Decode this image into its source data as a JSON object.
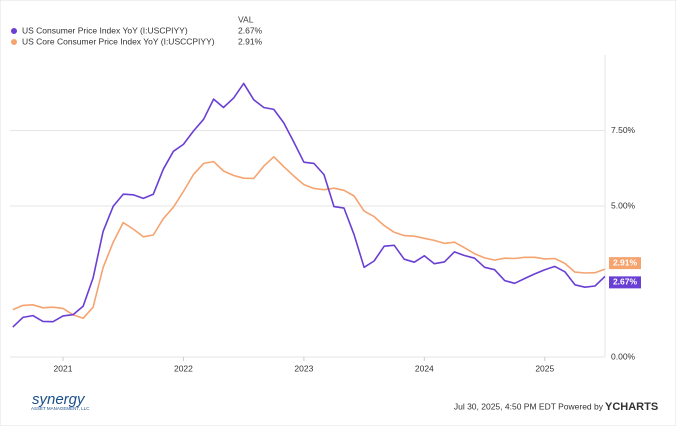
{
  "chart_data": {
    "type": "line",
    "legend_header": "VAL",
    "x": [
      2020.583,
      2020.667,
      2020.75,
      2020.833,
      2020.917,
      2021,
      2021.083,
      2021.167,
      2021.25,
      2021.333,
      2021.417,
      2021.5,
      2021.583,
      2021.667,
      2021.75,
      2021.833,
      2021.917,
      2022,
      2022.083,
      2022.167,
      2022.25,
      2022.333,
      2022.417,
      2022.5,
      2022.583,
      2022.667,
      2022.75,
      2022.833,
      2022.917,
      2023,
      2023.083,
      2023.167,
      2023.25,
      2023.333,
      2023.417,
      2023.5,
      2023.583,
      2023.667,
      2023.75,
      2023.833,
      2023.917,
      2024,
      2024.083,
      2024.167,
      2024.25,
      2024.333,
      2024.417,
      2024.5,
      2024.583,
      2024.667,
      2024.75,
      2024.833,
      2024.917,
      2025,
      2025.083,
      2025.167,
      2025.25,
      2025.333,
      2025.417,
      2025.5
    ],
    "series": [
      {
        "name": "US Consumer Price Index YoY (I:USCPIYY)",
        "color": "#6a3fd4",
        "latest_label": "2.67%",
        "values": [
          0.99,
          1.31,
          1.37,
          1.18,
          1.17,
          1.36,
          1.4,
          1.68,
          2.62,
          4.16,
          4.99,
          5.39,
          5.37,
          5.25,
          5.39,
          6.22,
          6.81,
          7.04,
          7.48,
          7.87,
          8.54,
          8.26,
          8.58,
          9.06,
          8.52,
          8.26,
          8.2,
          7.75,
          7.11,
          6.45,
          6.41,
          6.04,
          4.98,
          4.93,
          4.05,
          2.97,
          3.18,
          3.67,
          3.7,
          3.24,
          3.14,
          3.35,
          3.09,
          3.15,
          3.48,
          3.36,
          3.27,
          2.97,
          2.89,
          2.53,
          2.44,
          2.6,
          2.75,
          2.89,
          3.0,
          2.82,
          2.39,
          2.31,
          2.35,
          2.67
        ]
      },
      {
        "name": "US Core Consumer Price Index YoY (I:USCCPIYY)",
        "color": "#f5a470",
        "latest_label": "2.91%",
        "values": [
          1.57,
          1.71,
          1.73,
          1.63,
          1.65,
          1.61,
          1.4,
          1.28,
          1.65,
          2.96,
          3.8,
          4.45,
          4.24,
          3.98,
          4.04,
          4.58,
          4.96,
          5.48,
          6.04,
          6.41,
          6.47,
          6.16,
          6.01,
          5.92,
          5.91,
          6.32,
          6.63,
          6.3,
          5.99,
          5.71,
          5.58,
          5.54,
          5.59,
          5.52,
          5.33,
          4.83,
          4.65,
          4.35,
          4.13,
          4.02,
          4.0,
          3.93,
          3.86,
          3.76,
          3.8,
          3.62,
          3.42,
          3.28,
          3.21,
          3.27,
          3.26,
          3.3,
          3.3,
          3.25,
          3.26,
          3.1,
          2.81,
          2.78,
          2.79,
          2.91
        ]
      }
    ],
    "xlim": [
      2020.56,
      2025.5
    ],
    "xticks": [
      2021,
      2022,
      2023,
      2024,
      2025
    ],
    "ylim": [
      0,
      10
    ],
    "yticks": [
      {
        "value": 0,
        "label": "0.00%"
      },
      {
        "value": 5,
        "label": "5.00%"
      },
      {
        "value": 7.5,
        "label": "7.50%"
      }
    ],
    "grid": true
  },
  "footer": {
    "brand": "synergy",
    "brand_sub": "ASSET MANAGEMENT, LLC",
    "stamp": "Jul 30, 2025, 4:50 PM EDT Powered by",
    "source": "YCHARTS"
  }
}
